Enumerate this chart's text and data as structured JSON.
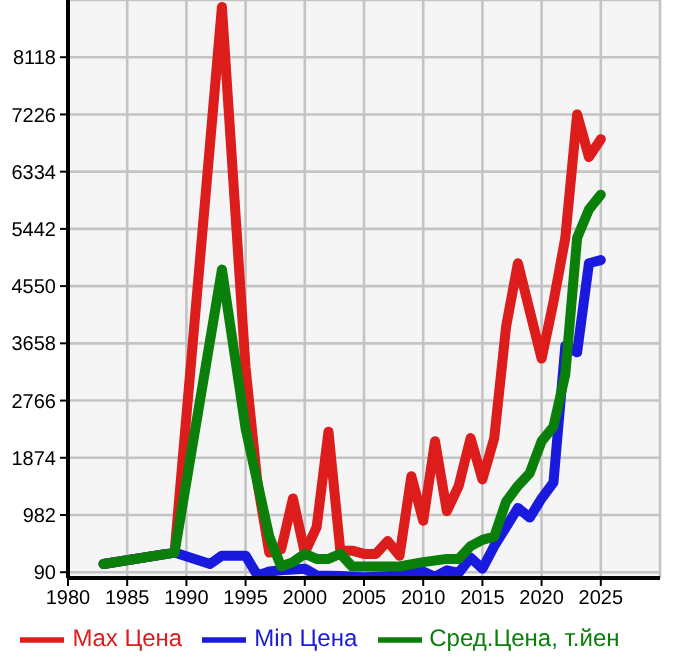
{
  "chart_data": {
    "type": "line",
    "xlim": [
      1980,
      2030
    ],
    "xticks": [
      1980,
      1985,
      1990,
      1995,
      2000,
      2005,
      2010,
      2015,
      2020,
      2025
    ],
    "ylim": [
      0,
      9010
    ],
    "yticks": [
      90,
      982,
      1874,
      2766,
      3658,
      4550,
      5442,
      6334,
      7226,
      8118
    ],
    "grid": true,
    "legend": "bottom",
    "marker": "none",
    "line_style": "solid",
    "series": [
      {
        "name": "Max Цена",
        "color": "#dd1c1c",
        "x": [
          1983,
          1989,
          1993,
          1995,
          1996,
          1997,
          1998,
          1999,
          2000,
          2001,
          2002,
          2003,
          2004,
          2005,
          2006,
          2007,
          2008,
          2009,
          2010,
          2011,
          2012,
          2013,
          2014,
          2015,
          2016,
          2017,
          2018,
          2019,
          2020,
          2021,
          2022,
          2023,
          2024,
          2025
        ],
        "values": [
          218,
          396,
          8900,
          3271,
          1487,
          396,
          447,
          1240,
          396,
          793,
          2280,
          426,
          426,
          376,
          376,
          575,
          347,
          1586,
          893,
          2132,
          1042,
          1437,
          2181,
          1537,
          2181,
          3916,
          4906,
          4163,
          3420,
          4300,
          5300,
          7226,
          6562,
          6839
        ]
      },
      {
        "name": "Min Цена",
        "color": "#1a1adf",
        "x": [
          1983,
          1989,
          1992,
          1993,
          1995,
          1996,
          1997,
          1998,
          2000,
          2001,
          2003,
          2005,
          2008,
          2010,
          2011,
          2012,
          2013,
          2014,
          2015,
          2016,
          2017,
          2018,
          2019,
          2020,
          2021,
          2022,
          2023,
          2024,
          2025
        ],
        "values": [
          218,
          396,
          218,
          348,
          348,
          40,
          100,
          120,
          145,
          40,
          30,
          10,
          40,
          100,
          20,
          120,
          80,
          318,
          145,
          497,
          793,
          1092,
          942,
          1240,
          1487,
          3619,
          3519,
          4906,
          4956
        ]
      },
      {
        "name": "Сред.Цена, т.йен",
        "color": "#0a800a",
        "x": [
          1983,
          1989,
          1993,
          1995,
          1997,
          1998,
          1999,
          2000,
          2001,
          2002,
          2003,
          2004,
          2008,
          2010,
          2012,
          2013,
          2014,
          2015,
          2016,
          2017,
          2018,
          2019,
          2020,
          2021,
          2022,
          2023,
          2024,
          2025
        ],
        "values": [
          218,
          396,
          4808,
          2329,
          646,
          179,
          248,
          378,
          298,
          298,
          378,
          179,
          179,
          248,
          298,
          298,
          497,
          595,
          646,
          1190,
          1437,
          1636,
          2132,
          2359,
          3173,
          5302,
          5745,
          5975
        ]
      }
    ]
  }
}
